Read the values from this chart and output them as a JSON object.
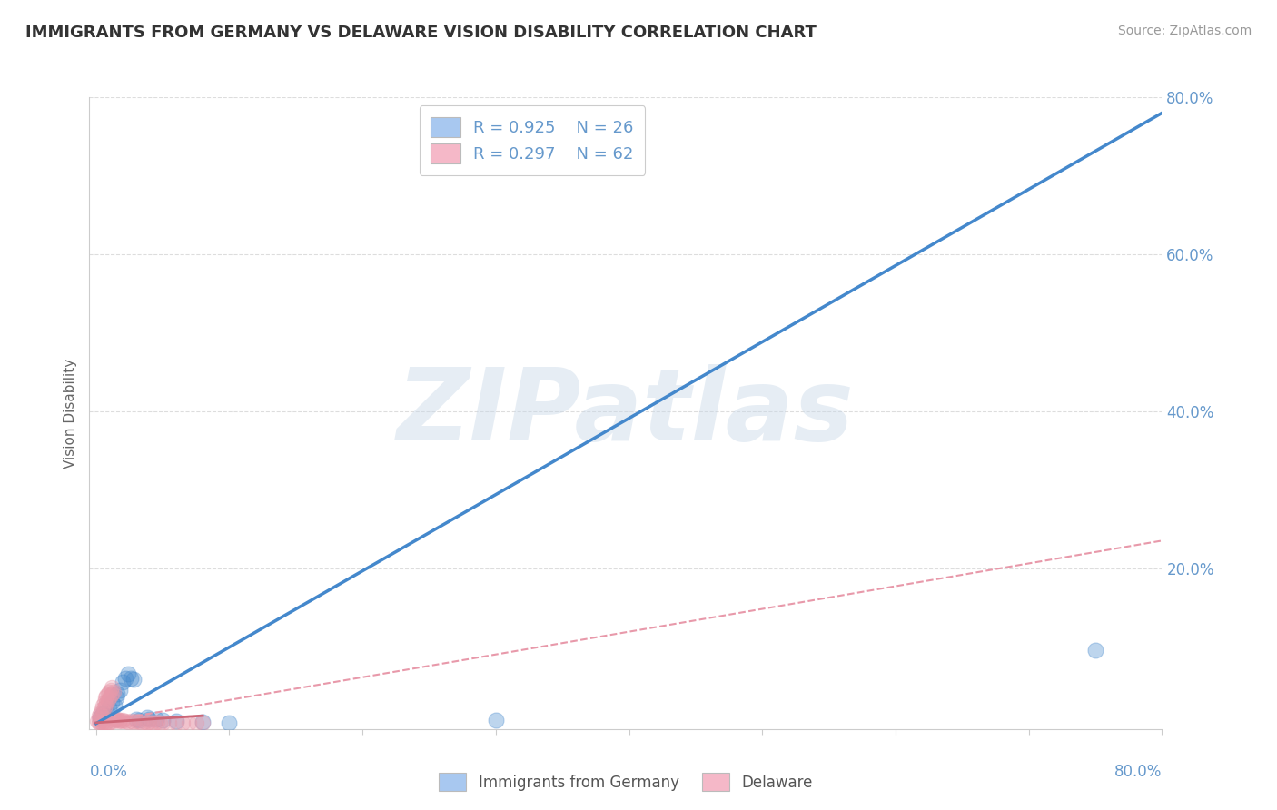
{
  "title": "IMMIGRANTS FROM GERMANY VS DELAWARE VISION DISABILITY CORRELATION CHART",
  "source": "Source: ZipAtlas.com",
  "ylabel": "Vision Disability",
  "y_tick_values": [
    0.2,
    0.4,
    0.6,
    0.8
  ],
  "y_tick_labels": [
    "20.0%",
    "40.0%",
    "60.0%",
    "80.0%"
  ],
  "x_tick_values": [
    0.0,
    0.1,
    0.2,
    0.3,
    0.4,
    0.5,
    0.6,
    0.7,
    0.8
  ],
  "xlim": [
    -0.005,
    0.8
  ],
  "ylim": [
    -0.005,
    0.8
  ],
  "watermark": "ZIPatlas",
  "legend_series": [
    {
      "label": "Immigrants from Germany",
      "color": "#a8c8f0",
      "R": 0.925,
      "N": 26
    },
    {
      "label": "Delaware",
      "color": "#f5b8c8",
      "R": 0.297,
      "N": 62
    }
  ],
  "blue_scatter": [
    [
      0.003,
      0.01
    ],
    [
      0.005,
      0.015
    ],
    [
      0.006,
      0.012
    ],
    [
      0.008,
      0.018
    ],
    [
      0.01,
      0.022
    ],
    [
      0.012,
      0.03
    ],
    [
      0.014,
      0.025
    ],
    [
      0.015,
      0.035
    ],
    [
      0.016,
      0.04
    ],
    [
      0.018,
      0.045
    ],
    [
      0.02,
      0.055
    ],
    [
      0.022,
      0.06
    ],
    [
      0.024,
      0.065
    ],
    [
      0.026,
      0.06
    ],
    [
      0.028,
      0.058
    ],
    [
      0.03,
      0.008
    ],
    [
      0.032,
      0.006
    ],
    [
      0.038,
      0.01
    ],
    [
      0.04,
      0.008
    ],
    [
      0.045,
      0.007
    ],
    [
      0.05,
      0.006
    ],
    [
      0.06,
      0.005
    ],
    [
      0.08,
      0.004
    ],
    [
      0.1,
      0.003
    ],
    [
      0.75,
      0.095
    ],
    [
      0.3,
      0.006
    ]
  ],
  "pink_scatter": [
    [
      0.001,
      0.005
    ],
    [
      0.002,
      0.008
    ],
    [
      0.002,
      0.012
    ],
    [
      0.003,
      0.01
    ],
    [
      0.003,
      0.015
    ],
    [
      0.004,
      0.012
    ],
    [
      0.004,
      0.02
    ],
    [
      0.005,
      0.018
    ],
    [
      0.005,
      0.025
    ],
    [
      0.006,
      0.022
    ],
    [
      0.006,
      0.03
    ],
    [
      0.007,
      0.025
    ],
    [
      0.007,
      0.035
    ],
    [
      0.008,
      0.03
    ],
    [
      0.008,
      0.038
    ],
    [
      0.009,
      0.032
    ],
    [
      0.009,
      0.04
    ],
    [
      0.01,
      0.035
    ],
    [
      0.01,
      0.042
    ],
    [
      0.011,
      0.038
    ],
    [
      0.011,
      0.045
    ],
    [
      0.012,
      0.04
    ],
    [
      0.012,
      0.048
    ],
    [
      0.013,
      0.042
    ],
    [
      0.013,
      0.005
    ],
    [
      0.014,
      0.008
    ],
    [
      0.015,
      0.006
    ],
    [
      0.016,
      0.007
    ],
    [
      0.017,
      0.005
    ],
    [
      0.018,
      0.006
    ],
    [
      0.019,
      0.005
    ],
    [
      0.02,
      0.006
    ],
    [
      0.022,
      0.005
    ],
    [
      0.024,
      0.004
    ],
    [
      0.026,
      0.005
    ],
    [
      0.028,
      0.004
    ],
    [
      0.03,
      0.005
    ],
    [
      0.032,
      0.004
    ],
    [
      0.034,
      0.003
    ],
    [
      0.036,
      0.004
    ],
    [
      0.038,
      0.003
    ],
    [
      0.04,
      0.004
    ],
    [
      0.042,
      0.003
    ],
    [
      0.044,
      0.003
    ],
    [
      0.046,
      0.004
    ],
    [
      0.048,
      0.003
    ],
    [
      0.05,
      0.003
    ],
    [
      0.055,
      0.003
    ],
    [
      0.06,
      0.003
    ],
    [
      0.065,
      0.003
    ],
    [
      0.07,
      0.003
    ],
    [
      0.075,
      0.003
    ],
    [
      0.08,
      0.003
    ],
    [
      0.002,
      0.003
    ],
    [
      0.003,
      0.004
    ],
    [
      0.004,
      0.003
    ],
    [
      0.005,
      0.003
    ],
    [
      0.006,
      0.003
    ],
    [
      0.007,
      0.003
    ],
    [
      0.008,
      0.003
    ],
    [
      0.009,
      0.003
    ],
    [
      0.01,
      0.003
    ]
  ],
  "blue_line": {
    "x0": 0.0,
    "y0": 0.002,
    "x1": 0.8,
    "y1": 0.78
  },
  "pink_line_solid": {
    "x0": 0.0,
    "y0": 0.003,
    "x1": 0.08,
    "y1": 0.012
  },
  "pink_line_dashed": {
    "x0": 0.0,
    "y0": 0.003,
    "x1": 0.8,
    "y1": 0.235
  },
  "blue_line_color": "#4488cc",
  "pink_line_color": "#e899aa",
  "pink_solid_color": "#cc6677",
  "grid_color": "#dddddd",
  "bg_color": "#ffffff",
  "title_color": "#333333",
  "axis_label_color": "#6699cc",
  "watermark_color": "#c8d8e8",
  "watermark_alpha": 0.45
}
